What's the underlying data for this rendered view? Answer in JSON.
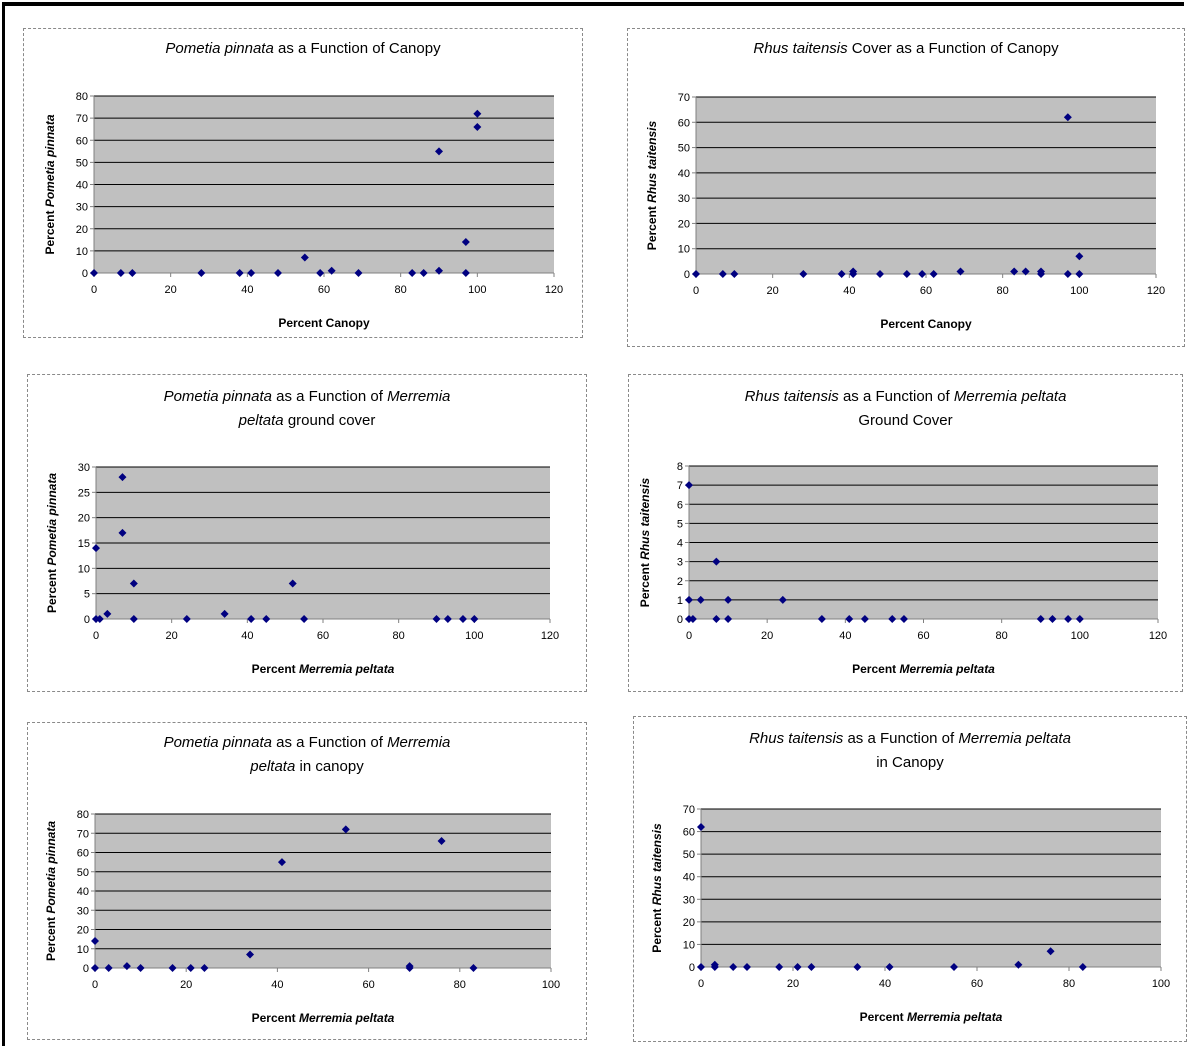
{
  "chart_data": [
    {
      "id": "c1",
      "type": "scatter",
      "title": [
        {
          "t": "Pometia pinnata",
          "i": true
        },
        {
          "t": " as a Function of Canopy"
        }
      ],
      "xlabel": [
        {
          "t": "Percent Canopy"
        }
      ],
      "ylabel": [
        {
          "t": "Percent "
        },
        {
          "t": "Pometia pinnata",
          "i": true
        }
      ],
      "xlim": [
        0,
        120
      ],
      "xticks": [
        0,
        20,
        40,
        60,
        80,
        100,
        120
      ],
      "ylim": [
        0,
        80
      ],
      "yticks": [
        0,
        10,
        20,
        30,
        40,
        50,
        60,
        70,
        80
      ],
      "grid": "horizontal",
      "plot_bg": "#c0c0c0",
      "marker_color": "#000080",
      "points": [
        [
          0,
          0
        ],
        [
          7,
          0
        ],
        [
          10,
          0
        ],
        [
          28,
          0
        ],
        [
          38,
          0
        ],
        [
          41,
          0
        ],
        [
          48,
          0
        ],
        [
          55,
          7
        ],
        [
          59,
          0
        ],
        [
          62,
          1
        ],
        [
          69,
          0
        ],
        [
          83,
          0
        ],
        [
          86,
          0
        ],
        [
          90,
          1
        ],
        [
          90,
          55
        ],
        [
          97,
          14
        ],
        [
          97,
          0
        ],
        [
          100,
          72
        ],
        [
          100,
          66
        ]
      ]
    },
    {
      "id": "c2",
      "type": "scatter",
      "title": [
        {
          "t": "Rhus taitensis",
          "i": true
        },
        {
          "t": " Cover as a Function of Canopy"
        }
      ],
      "xlabel": [
        {
          "t": "Percent Canopy"
        }
      ],
      "ylabel": [
        {
          "t": "Percent "
        },
        {
          "t": "Rhus taitensis",
          "i": true
        }
      ],
      "xlim": [
        0,
        120
      ],
      "xticks": [
        0,
        20,
        40,
        60,
        80,
        100,
        120
      ],
      "ylim": [
        0,
        70
      ],
      "yticks": [
        0,
        10,
        20,
        30,
        40,
        50,
        60,
        70
      ],
      "grid": "horizontal",
      "plot_bg": "#c0c0c0",
      "marker_color": "#000080",
      "points": [
        [
          0,
          0
        ],
        [
          7,
          0
        ],
        [
          10,
          0
        ],
        [
          28,
          0
        ],
        [
          38,
          0
        ],
        [
          41,
          0
        ],
        [
          41,
          1
        ],
        [
          48,
          0
        ],
        [
          55,
          0
        ],
        [
          59,
          0
        ],
        [
          62,
          0
        ],
        [
          69,
          1
        ],
        [
          83,
          1
        ],
        [
          86,
          1
        ],
        [
          90,
          0
        ],
        [
          90,
          1
        ],
        [
          97,
          62
        ],
        [
          97,
          0
        ],
        [
          100,
          7
        ],
        [
          100,
          0
        ]
      ]
    },
    {
      "id": "c3",
      "type": "scatter",
      "title": [
        {
          "t": "Pometia pinnata",
          "i": true
        },
        {
          "t": " as a Function of "
        },
        {
          "t": "Merremia",
          "i": true
        },
        {
          "br": true
        },
        {
          "t": "peltata",
          "i": true
        },
        {
          "t": " ground cover"
        }
      ],
      "xlabel": [
        {
          "t": "Percent "
        },
        {
          "t": "Merremia peltata",
          "i": true
        }
      ],
      "ylabel": [
        {
          "t": "Percent "
        },
        {
          "t": "Pometia pinnata",
          "i": true
        }
      ],
      "xlim": [
        0,
        120
      ],
      "xticks": [
        0,
        20,
        40,
        60,
        80,
        100,
        120
      ],
      "ylim": [
        0,
        30
      ],
      "yticks": [
        0,
        5,
        10,
        15,
        20,
        25,
        30
      ],
      "grid": "horizontal",
      "plot_bg": "#c0c0c0",
      "marker_color": "#000080",
      "points": [
        [
          0,
          14
        ],
        [
          0,
          0
        ],
        [
          1,
          0
        ],
        [
          3,
          1
        ],
        [
          7,
          28
        ],
        [
          7,
          17
        ],
        [
          10,
          7
        ],
        [
          10,
          0
        ],
        [
          24,
          0
        ],
        [
          34,
          1
        ],
        [
          41,
          0
        ],
        [
          45,
          0
        ],
        [
          52,
          7
        ],
        [
          55,
          0
        ],
        [
          90,
          0
        ],
        [
          93,
          0
        ],
        [
          97,
          0
        ],
        [
          100,
          0
        ]
      ]
    },
    {
      "id": "c4",
      "type": "scatter",
      "title": [
        {
          "t": "Rhus taitensis",
          "i": true
        },
        {
          "t": " as a Function of "
        },
        {
          "t": "Merremia peltata",
          "i": true
        },
        {
          "br": true
        },
        {
          "t": "Ground Cover"
        }
      ],
      "xlabel": [
        {
          "t": "Percent "
        },
        {
          "t": "Merremia peltata",
          "i": true
        }
      ],
      "ylabel": [
        {
          "t": "Percent "
        },
        {
          "t": "Rhus taitensis",
          "i": true
        }
      ],
      "xlim": [
        0,
        120
      ],
      "xticks": [
        0,
        20,
        40,
        60,
        80,
        100,
        120
      ],
      "ylim": [
        0,
        8
      ],
      "yticks": [
        0,
        1,
        2,
        3,
        4,
        5,
        6,
        7,
        8
      ],
      "grid": "horizontal",
      "plot_bg": "#c0c0c0",
      "marker_color": "#000080",
      "points": [
        [
          0,
          7
        ],
        [
          0,
          1
        ],
        [
          0,
          0
        ],
        [
          1,
          0
        ],
        [
          3,
          1
        ],
        [
          7,
          3
        ],
        [
          7,
          0
        ],
        [
          10,
          1
        ],
        [
          10,
          0
        ],
        [
          24,
          1
        ],
        [
          34,
          0
        ],
        [
          41,
          0
        ],
        [
          45,
          0
        ],
        [
          52,
          0
        ],
        [
          55,
          0
        ],
        [
          90,
          0
        ],
        [
          93,
          0
        ],
        [
          97,
          0
        ],
        [
          100,
          0
        ]
      ]
    },
    {
      "id": "c5",
      "type": "scatter",
      "title": [
        {
          "t": "Pometia pinnata",
          "i": true
        },
        {
          "t": " as a Function of "
        },
        {
          "t": "Merremia",
          "i": true
        },
        {
          "br": true
        },
        {
          "t": "peltata",
          "i": true
        },
        {
          "t": " in canopy"
        }
      ],
      "xlabel": [
        {
          "t": "Percent "
        },
        {
          "t": "Merremia peltata",
          "i": true
        }
      ],
      "ylabel": [
        {
          "t": "Percent "
        },
        {
          "t": "Pometia pinnata",
          "i": true
        }
      ],
      "xlim": [
        0,
        100
      ],
      "xticks": [
        0,
        20,
        40,
        60,
        80,
        100
      ],
      "ylim": [
        0,
        80
      ],
      "yticks": [
        0,
        10,
        20,
        30,
        40,
        50,
        60,
        70,
        80
      ],
      "grid": "horizontal",
      "plot_bg": "#c0c0c0",
      "marker_color": "#000080",
      "points": [
        [
          0,
          14
        ],
        [
          0,
          0
        ],
        [
          3,
          0
        ],
        [
          7,
          1
        ],
        [
          10,
          0
        ],
        [
          17,
          0
        ],
        [
          21,
          0
        ],
        [
          24,
          0
        ],
        [
          34,
          7
        ],
        [
          41,
          55
        ],
        [
          55,
          72
        ],
        [
          69,
          1
        ],
        [
          69,
          0
        ],
        [
          76,
          66
        ],
        [
          83,
          0
        ]
      ]
    },
    {
      "id": "c6",
      "type": "scatter",
      "title": [
        {
          "t": "Rhus taitensis",
          "i": true
        },
        {
          "t": " as a Function of "
        },
        {
          "t": "Merremia peltata",
          "i": true
        },
        {
          "br": true
        },
        {
          "t": "in Canopy"
        }
      ],
      "xlabel": [
        {
          "t": "Percent "
        },
        {
          "t": "Merremia peltata",
          "i": true
        }
      ],
      "ylabel": [
        {
          "t": "Percent "
        },
        {
          "t": "Rhus taitensis",
          "i": true
        }
      ],
      "xlim": [
        0,
        100
      ],
      "xticks": [
        0,
        20,
        40,
        60,
        80,
        100
      ],
      "ylim": [
        0,
        70
      ],
      "yticks": [
        0,
        10,
        20,
        30,
        40,
        50,
        60,
        70
      ],
      "grid": "horizontal",
      "plot_bg": "#c0c0c0",
      "marker_color": "#000080",
      "points": [
        [
          0,
          62
        ],
        [
          0,
          0
        ],
        [
          3,
          0
        ],
        [
          3,
          1
        ],
        [
          7,
          0
        ],
        [
          10,
          0
        ],
        [
          17,
          0
        ],
        [
          21,
          0
        ],
        [
          24,
          0
        ],
        [
          34,
          0
        ],
        [
          41,
          0
        ],
        [
          55,
          0
        ],
        [
          69,
          1
        ],
        [
          76,
          7
        ],
        [
          83,
          0
        ]
      ]
    }
  ]
}
